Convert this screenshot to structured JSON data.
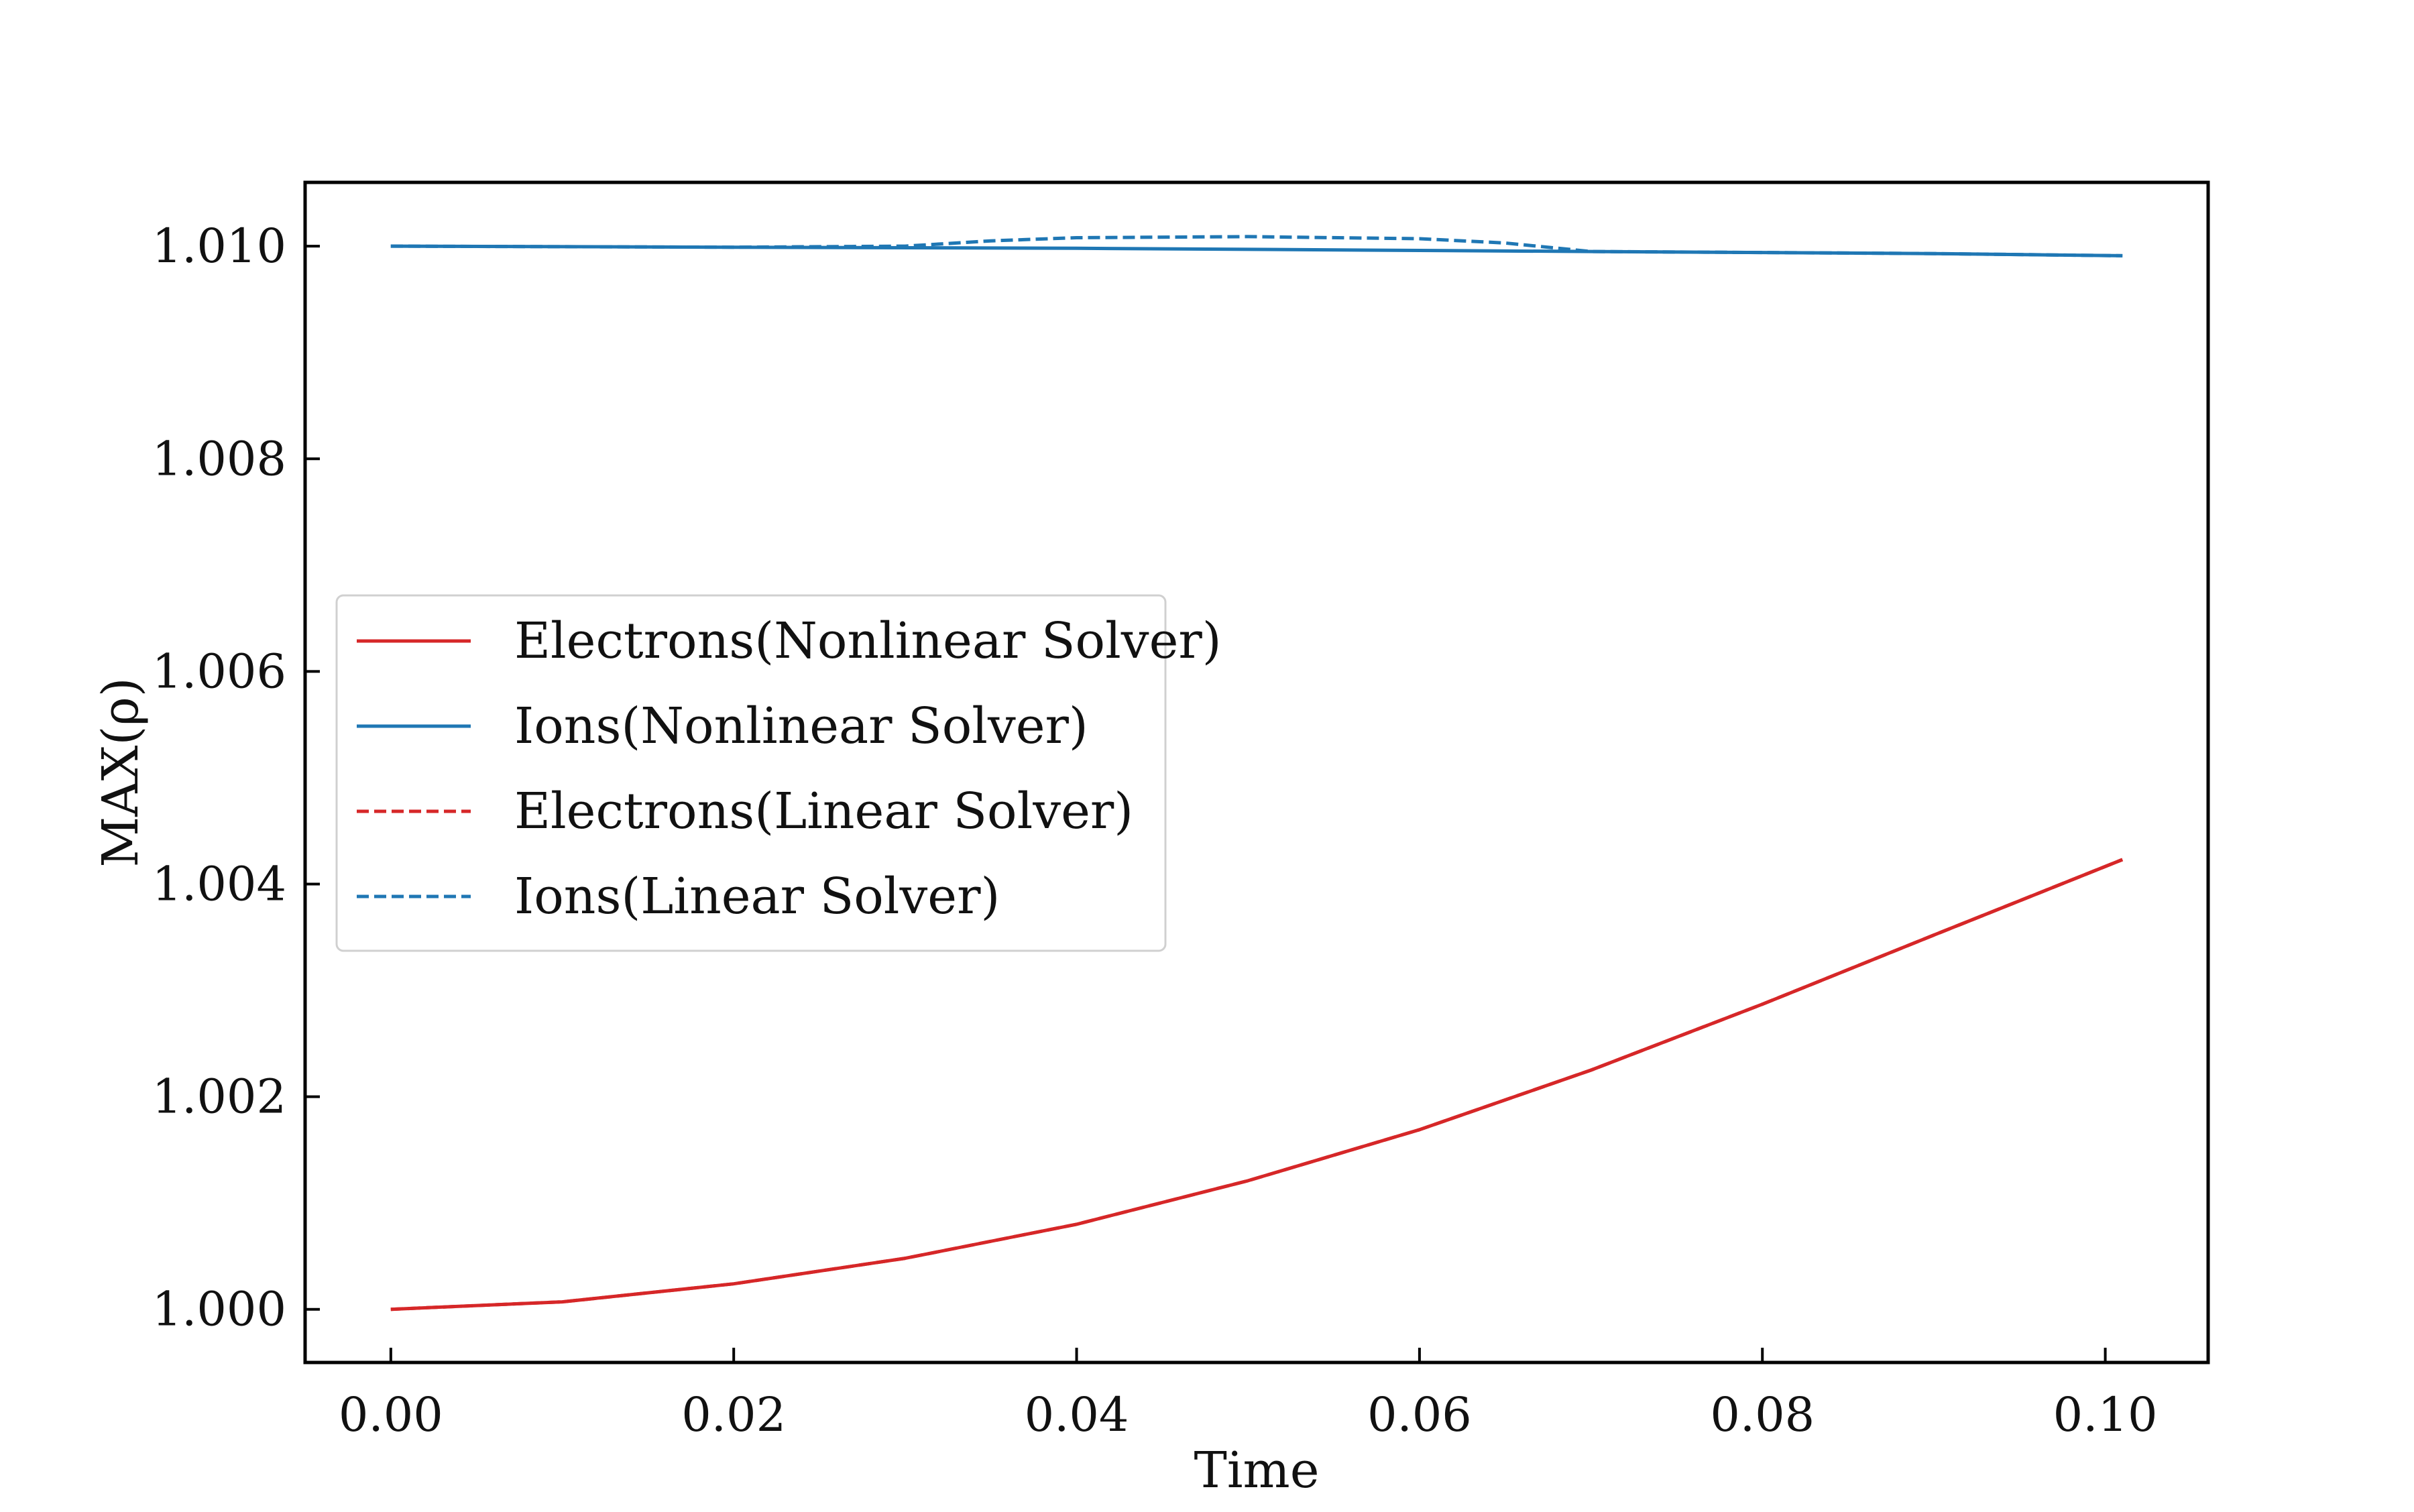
{
  "chart_data": {
    "type": "line",
    "title": "",
    "xlabel": "Time",
    "ylabel": "MAX(ρ)",
    "xlim": [
      -0.005,
      0.106
    ],
    "ylim": [
      0.9995,
      1.0106
    ],
    "grid": false,
    "legend_position": "center-left",
    "x_ticks": [
      0.0,
      0.02,
      0.04,
      0.06,
      0.08,
      0.1
    ],
    "x_tick_labels": [
      "0.00",
      "0.02",
      "0.04",
      "0.06",
      "0.08",
      "0.10"
    ],
    "y_ticks": [
      1.0,
      1.002,
      1.004,
      1.006,
      1.008,
      1.01
    ],
    "y_tick_labels": [
      "1.000",
      "1.002",
      "1.004",
      "1.006",
      "1.008",
      "1.010"
    ],
    "colors": {
      "electrons": "#d62728",
      "ions": "#1f77b4"
    },
    "series": [
      {
        "name": "Electrons(Nonlinear Solver)",
        "color": "#d62728",
        "style": "solid",
        "x": [
          0.0,
          0.01,
          0.02,
          0.03,
          0.04,
          0.05,
          0.06,
          0.07,
          0.08,
          0.09,
          0.101
        ],
        "y": [
          1.0,
          1.00007,
          1.00024,
          1.00048,
          1.0008,
          1.00121,
          1.00169,
          1.00225,
          1.00287,
          1.00352,
          1.00423
        ]
      },
      {
        "name": "Ions(Nonlinear Solver)",
        "color": "#1f77b4",
        "style": "solid",
        "x": [
          0.0,
          0.02,
          0.04,
          0.06,
          0.07,
          0.08,
          0.09,
          0.101
        ],
        "y": [
          1.01,
          1.00999,
          1.00998,
          1.00996,
          1.00995,
          1.00994,
          1.00993,
          1.00991
        ]
      },
      {
        "name": "Electrons(Linear Solver)",
        "color": "#d62728",
        "style": "dashed",
        "x": [
          0.0,
          0.01,
          0.02,
          0.03,
          0.04,
          0.05,
          0.06,
          0.07,
          0.08,
          0.09,
          0.101
        ],
        "y": [
          1.0,
          1.00007,
          1.00024,
          1.00048,
          1.0008,
          1.00121,
          1.00169,
          1.00225,
          1.00287,
          1.00352,
          1.00423
        ]
      },
      {
        "name": "Ions(Linear Solver)",
        "color": "#1f77b4",
        "style": "dashed",
        "x": [
          0.0,
          0.02,
          0.03,
          0.035,
          0.04,
          0.05,
          0.06,
          0.065,
          0.07,
          0.08,
          0.09,
          0.101
        ],
        "y": [
          1.01,
          1.00999,
          1.01,
          1.01005,
          1.01008,
          1.01009,
          1.01007,
          1.01003,
          1.00995,
          1.00994,
          1.00993,
          1.00991
        ]
      }
    ]
  }
}
